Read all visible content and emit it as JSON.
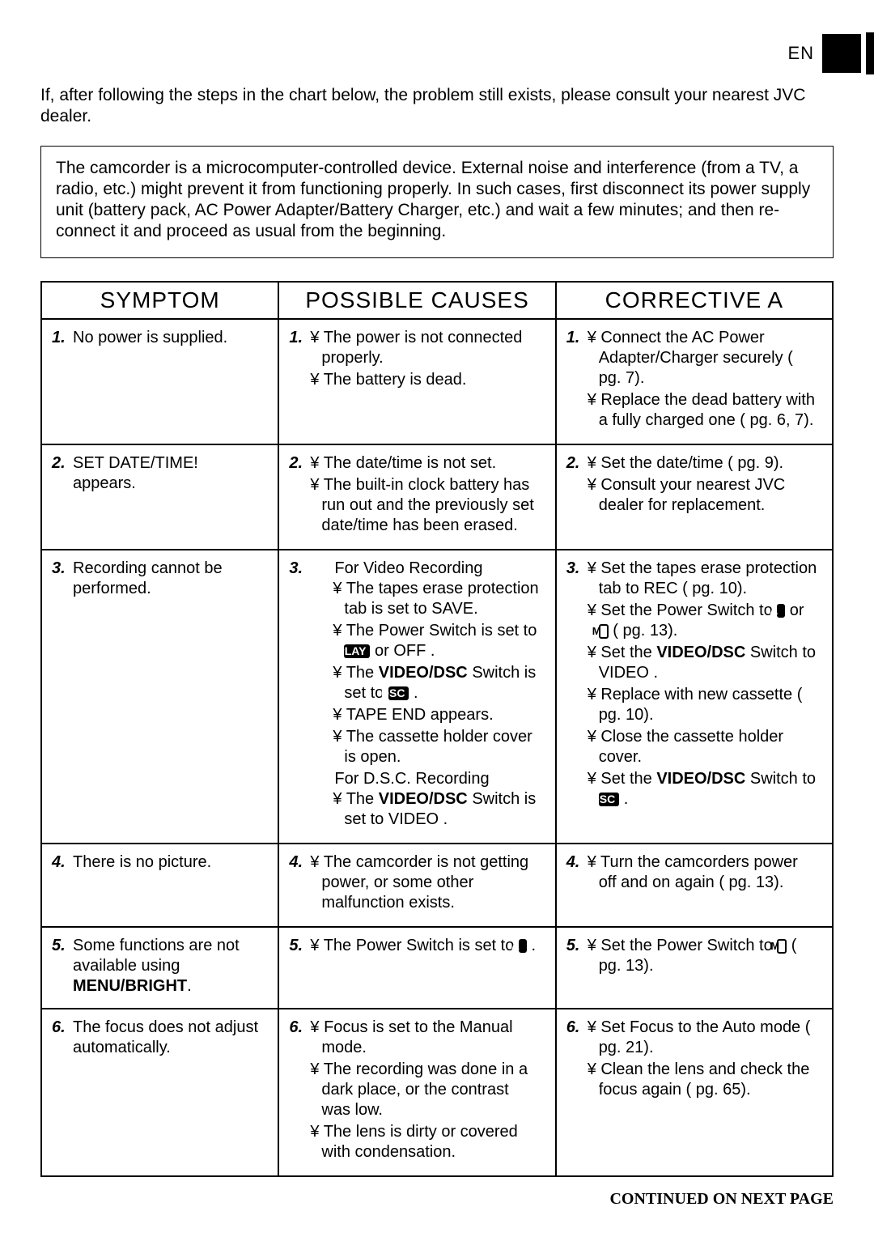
{
  "header": {
    "en_label": "EN"
  },
  "intro": "If, after following the steps in the chart below, the problem still exists, please consult your nearest JVC dealer.",
  "note": "The camcorder is a microcomputer-controlled device. External noise and interference (from a TV, a radio, etc.) might prevent it from functioning properly. In such cases, first disconnect its power supply unit (battery pack, AC Power Adapter/Battery Charger, etc.) and wait a few minutes; and then re-connect it and proceed as usual from the beginning.",
  "table": {
    "headers": {
      "symptom": "SYMPTOM",
      "causes": "POSSIBLE CAUSES",
      "action": "CORRECTIVE A"
    }
  },
  "rows": [
    {
      "n": "1.",
      "symptom": "No power is supplied.",
      "causes": [
        "¥ The power is not connected properly.",
        "¥ The battery is dead."
      ],
      "actions": [
        "¥ Connect the AC Power Adapter/Charger securely ( pg. 7).",
        "¥ Replace the dead battery with a fully charged one ( pg. 6, 7)."
      ]
    },
    {
      "n": "2.",
      "symptom_html": "SET DATE/TIME! appears.",
      "causes": [
        "¥ The date/time is not set.",
        "¥ The built-in clock battery has run out and the previously set date/time has been erased."
      ],
      "actions": [
        "¥ Set the date/time ( pg. 9).",
        "¥ Consult your nearest JVC dealer for replacement."
      ]
    },
    {
      "n": "3.",
      "symptom": "Recording cannot be performed.",
      "causes_title1": "For Video Recording",
      "causes_v": [
        "¥ The tapes erase protection tab is set to SAVE.",
        "¥ The Power Switch is set to {PLAY} or OFF .",
        "¥ The <b>VIDEO/DSC</b> Switch is set to {DSC} .",
        "¥ TAPE END appears.",
        "¥ The cassette holder cover is open."
      ],
      "causes_title2": "For D.S.C. Recording",
      "causes_d": [
        "¥ The <b>VIDEO/DSC</b> Switch is set to VIDEO ."
      ],
      "actions": [
        "¥ Set the tapes erase protection tab to REC ( pg. 10).",
        "¥ Set the Power Switch to {A} or {M} ( pg. 13).",
        "¥ Set the <b>VIDEO/DSC</b> Switch to VIDEO .",
        "¥ Replace with new cassette ( pg. 10).",
        "¥ Close the cassette holder cover.",
        "¥ Set the <b>VIDEO/DSC</b> Switch to {DSC} ."
      ]
    },
    {
      "n": "4.",
      "symptom": "There is no picture.",
      "causes": [
        "¥ The camcorder is not getting power, or some other malfunction exists."
      ],
      "actions": [
        "¥ Turn the camcorders power off and on again ( pg. 13)."
      ]
    },
    {
      "n": "5.",
      "symptom_html": "Some functions are not available using <b>MENU/BRIGHT</b>.",
      "causes": [
        "¥ The Power Switch is set to {A} ."
      ],
      "actions": [
        "¥ Set the Power Switch to {M} ( pg. 13)."
      ]
    },
    {
      "n": "6.",
      "symptom": "The focus does not adjust automatically.",
      "causes": [
        "¥ Focus is set to the Manual mode.",
        "¥ The recording was done in a dark place, or the contrast was low.",
        "¥ The lens is dirty or covered with condensation."
      ],
      "actions": [
        "¥ Set Focus to the Auto mode ( pg. 21).",
        "¥ Clean the lens and check the focus again ( pg. 65)."
      ]
    }
  ],
  "footer": "CONTINUED ON NEXT PAGE"
}
